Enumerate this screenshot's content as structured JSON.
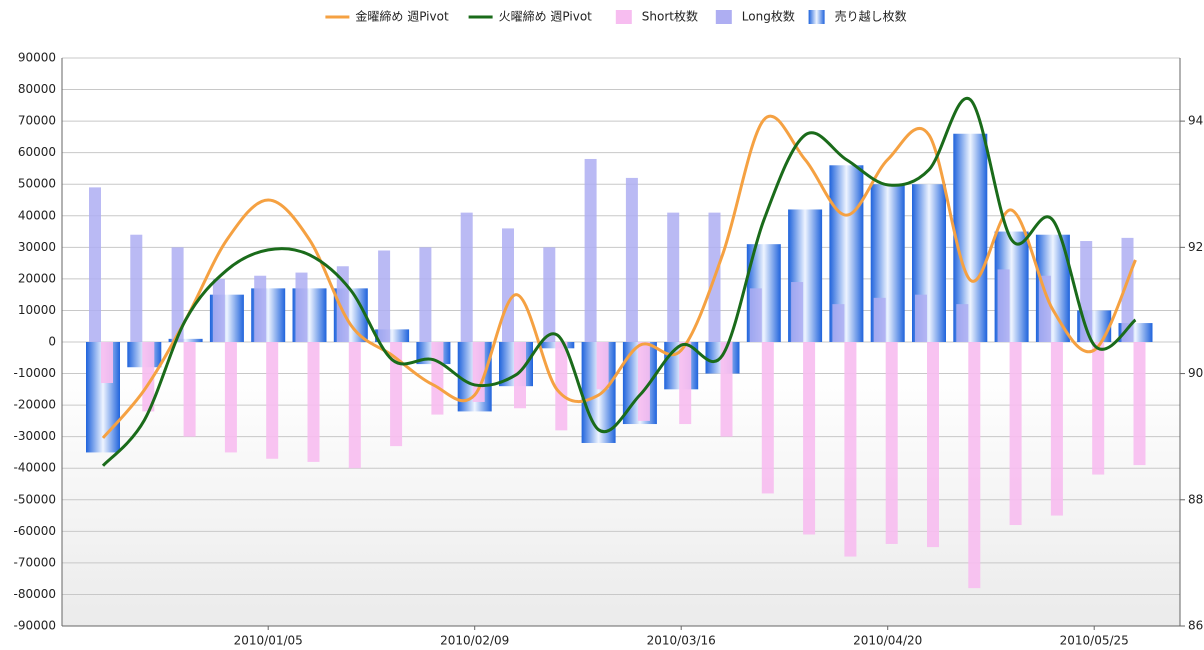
{
  "chart_data": {
    "type": "bar",
    "categories": [
      null,
      null,
      null,
      null,
      "2010/01/05",
      null,
      null,
      null,
      null,
      "2010/02/09",
      null,
      null,
      null,
      null,
      "2010/03/16",
      null,
      null,
      null,
      null,
      "2010/04/20",
      null,
      null,
      null,
      null,
      "2010/05/25",
      null
    ],
    "ylim": [
      -90000,
      90000
    ],
    "yticks": [
      -90000,
      -80000,
      -70000,
      -60000,
      -50000,
      -40000,
      -30000,
      -20000,
      -10000,
      0,
      10000,
      20000,
      30000,
      40000,
      50000,
      60000,
      70000,
      80000,
      90000
    ],
    "y2lim": [
      86,
      95
    ],
    "y2ticks": [
      86,
      88,
      90,
      92,
      94
    ],
    "grid": true,
    "legend": "top",
    "series": [
      {
        "name": "金曜締め 週Pivot",
        "type": "line",
        "axis": "y2",
        "color": "#f5a142",
        "values": [
          88.98,
          89.74,
          90.85,
          92.12,
          92.75,
          92.12,
          90.77,
          90.29,
          89.82,
          89.66,
          91.25,
          89.74,
          89.66,
          90.45,
          90.37,
          91.88,
          94.02,
          93.39,
          92.51,
          93.39,
          93.78,
          91.48,
          92.59,
          91.01,
          90.37,
          91.8
        ]
      },
      {
        "name": "火曜締め 週Pivot",
        "type": "line",
        "axis": "y2",
        "color": "#1a6b1a",
        "values": [
          88.54,
          89.26,
          90.85,
          91.64,
          91.96,
          91.88,
          91.32,
          90.22,
          90.22,
          89.82,
          89.98,
          90.61,
          89.11,
          89.66,
          90.45,
          90.29,
          92.43,
          93.78,
          93.39,
          92.99,
          93.23,
          94.34,
          92.12,
          92.43,
          90.45,
          90.85
        ]
      },
      {
        "name": "Short枚数",
        "type": "short",
        "color": "#f7bdf0",
        "values": [
          -13000,
          -22000,
          -30000,
          -35000,
          -37000,
          -38000,
          -40000,
          -33000,
          -23000,
          -19000,
          -21000,
          -28000,
          -15000,
          -25000,
          -26000,
          -30000,
          -48000,
          -61000,
          -68000,
          -64000,
          -65000,
          -78000,
          -58000,
          -55000,
          -42000,
          -39000
        ]
      },
      {
        "name": "Long枚数",
        "type": "long",
        "color": "#aeaef2",
        "values": [
          49000,
          34000,
          30000,
          20000,
          21000,
          22000,
          24000,
          29000,
          30000,
          41000,
          36000,
          30000,
          58000,
          52000,
          41000,
          41000,
          17000,
          19000,
          12000,
          14000,
          15000,
          12000,
          23000,
          21000,
          32000,
          33000
        ]
      },
      {
        "name": "売り越し枚数",
        "type": "net",
        "color": "#1f63dc",
        "values": [
          -35000,
          -8000,
          1000,
          15000,
          17000,
          17000,
          17000,
          4000,
          -7000,
          -22000,
          -14000,
          -2000,
          -32000,
          -26000,
          -15000,
          -10000,
          31000,
          42000,
          56000,
          50000,
          50000,
          66000,
          35000,
          34000,
          10000,
          6000
        ]
      }
    ]
  }
}
